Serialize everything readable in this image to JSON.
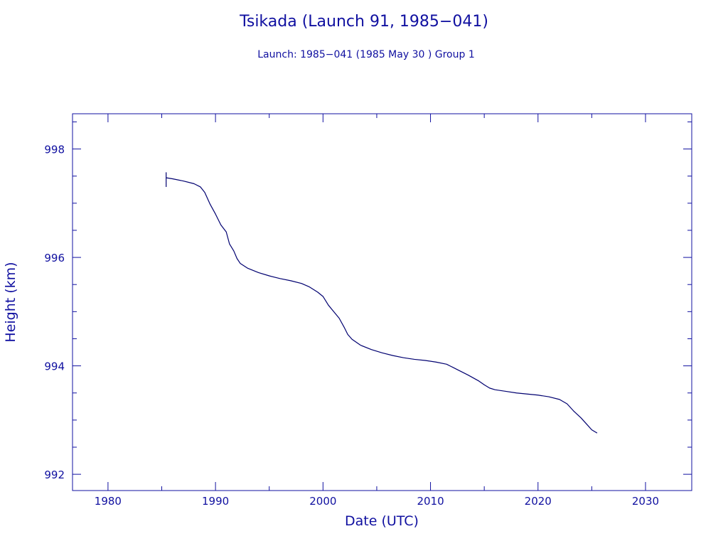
{
  "colors": {
    "ink": "#1010a0",
    "line": "#000070",
    "background": "#ffffff"
  },
  "chart_data": {
    "type": "line",
    "title": "Tsikada (Launch 91, 1985−041)",
    "subtitle": "Launch: 1985−041  (1985 May 30 )  Group 1",
    "xlabel": "Date (UTC)",
    "ylabel": "Height (km)",
    "xlim": [
      1976.7,
      2034.3
    ],
    "ylim": [
      991.7,
      998.65
    ],
    "x_ticks": [
      1980,
      1990,
      2000,
      2010,
      2020,
      2030
    ],
    "x_tick_labels": [
      "1980",
      "1990",
      "2000",
      "2010",
      "2020",
      "2030"
    ],
    "y_ticks": [
      992,
      994,
      996,
      998
    ],
    "y_tick_labels": [
      "992",
      "994",
      "996",
      "998"
    ],
    "grid": false,
    "launch_marker": {
      "x": 1985.41,
      "y_range": [
        997.3,
        997.57
      ]
    },
    "series": [
      {
        "x": [
          1985.4,
          1986.0,
          1987.0,
          1988.0,
          1988.6,
          1989.0,
          1989.5,
          1990.0,
          1990.5,
          1991.0,
          1991.3,
          1991.7,
          1992.0,
          1992.3,
          1993.0,
          1994.0,
          1995.0,
          1996.0,
          1997.0,
          1998.0,
          1998.7,
          1999.5,
          2000.0,
          2000.5,
          2001.0,
          2001.5,
          2002.0,
          2002.3,
          2002.7,
          2003.5,
          2004.5,
          2005.5,
          2006.5,
          2007.5,
          2008.5,
          2009.5,
          2010.5,
          2011.5,
          2012.5,
          2013.5,
          2014.5,
          2015.0,
          2015.5,
          2016.0,
          2017.0,
          2018.0,
          2019.0,
          2020.0,
          2021.0,
          2022.0,
          2022.7,
          2023.3,
          2024.0,
          2024.5,
          2025.0,
          2025.5
        ],
        "y": [
          997.47,
          997.45,
          997.41,
          997.36,
          997.3,
          997.2,
          996.98,
          996.8,
          996.6,
          996.47,
          996.25,
          996.12,
          995.98,
          995.89,
          995.8,
          995.72,
          995.66,
          995.61,
          995.57,
          995.52,
          995.46,
          995.36,
          995.28,
          995.12,
          995.0,
          994.88,
          994.7,
          994.58,
          994.49,
          994.38,
          994.3,
          994.24,
          994.19,
          994.15,
          994.12,
          994.1,
          994.07,
          994.03,
          993.93,
          993.83,
          993.72,
          993.65,
          993.59,
          993.56,
          993.53,
          993.5,
          993.48,
          993.46,
          993.43,
          993.38,
          993.3,
          993.17,
          993.04,
          992.93,
          992.82,
          992.76
        ]
      }
    ]
  }
}
